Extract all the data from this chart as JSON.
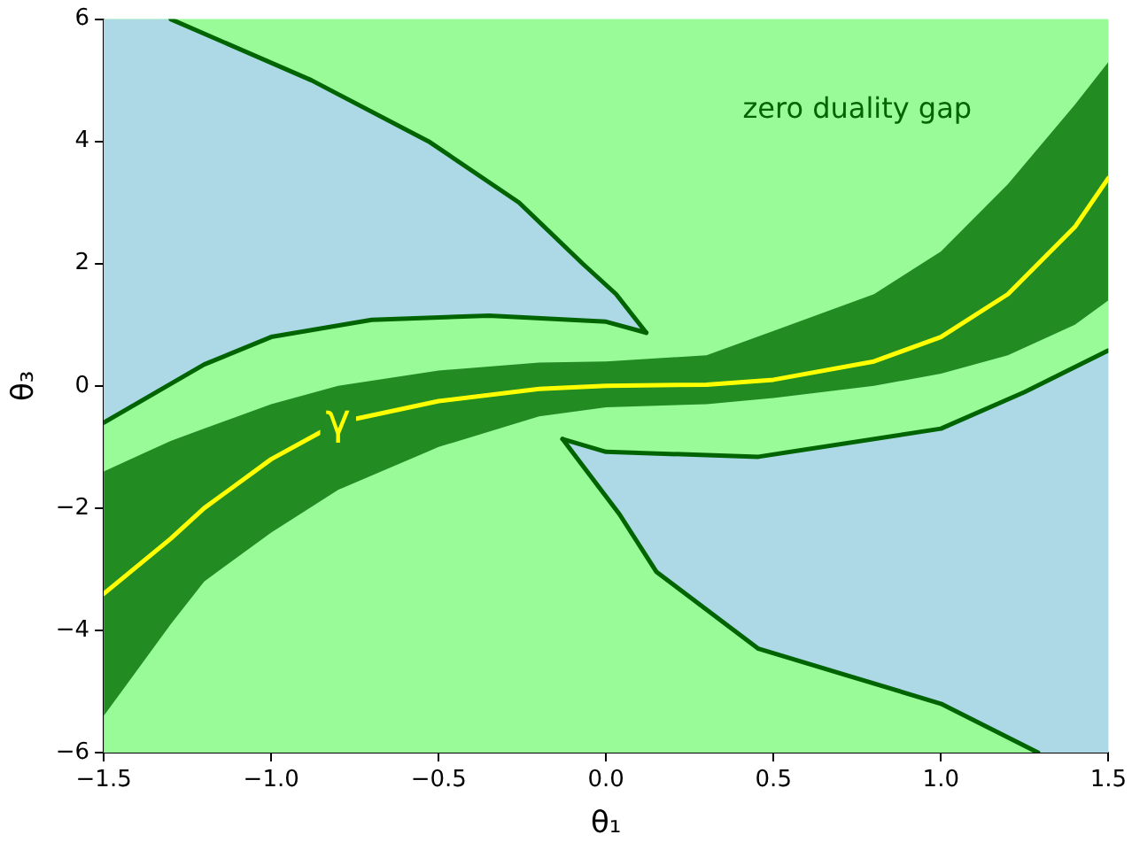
{
  "chart_data": {
    "type": "area",
    "xlabel": "θ₁",
    "ylabel": "θ₃",
    "xlim": [
      -1.5,
      1.5
    ],
    "xticks": [
      {
        "value": -1.5,
        "label": "−1.5"
      },
      {
        "value": -1,
        "label": "−1.0"
      },
      {
        "value": -0.5,
        "label": "−0.5"
      },
      {
        "value": 0,
        "label": "0.0"
      },
      {
        "value": 0.5,
        "label": "0.5"
      },
      {
        "value": 1,
        "label": "1.0"
      },
      {
        "value": 1.5,
        "label": "1.5"
      }
    ],
    "ylim": [
      -6,
      6
    ],
    "yticks": [
      {
        "value": -6,
        "label": "−6"
      },
      {
        "value": -4,
        "label": "−4"
      },
      {
        "value": -2,
        "label": "−2"
      },
      0,
      2,
      4,
      6
    ],
    "grid": false,
    "legend": false,
    "bands": [
      {
        "axis": "y",
        "from": -6,
        "to": 6,
        "color": "#98fb98"
      }
    ],
    "series": [
      {
        "color": "#add8e6",
        "x": [
          -1.5,
          -1.3,
          -0.88,
          -0.53,
          -0.26,
          -0.07,
          0.03,
          0.12,
          0,
          -0.35,
          -0.7,
          -1,
          -1.2,
          -1.5
        ],
        "values": [
          6,
          6,
          5,
          4,
          3,
          2,
          1.5,
          0.87,
          1.05,
          1.15,
          1.08,
          0.8,
          0.35,
          -0.6
        ]
      },
      {
        "color": "#add8e6",
        "x": [
          1.5,
          1.29,
          1,
          0.455,
          0.15,
          0.04,
          -0.13,
          0,
          0.455,
          1,
          1.25,
          1.5
        ],
        "values": [
          -6,
          -6,
          -5.2,
          -4.3,
          -3.04,
          -2.1,
          -0.87,
          -1.08,
          -1.16,
          -0.7,
          -0.1,
          0.58
        ]
      },
      {
        "type": "line",
        "color": "#006400",
        "x": [
          -1.3,
          -0.88,
          -0.53,
          -0.26,
          -0.07,
          0.03,
          0.12
        ],
        "values": [
          6,
          5,
          4,
          3,
          2,
          1.5,
          0.87
        ]
      },
      {
        "type": "line",
        "color": "#006400",
        "x": [
          -1.5,
          -1.2,
          -1,
          -0.7,
          -0.35,
          0,
          0.12
        ],
        "values": [
          -0.6,
          0.35,
          0.8,
          1.08,
          1.15,
          1.05,
          0.87
        ]
      },
      {
        "type": "line",
        "color": "#006400",
        "x": [
          -0.13,
          0.04,
          0.15,
          0.455,
          1,
          1.29
        ],
        "values": [
          -0.87,
          -2.1,
          -3.04,
          -4.3,
          -5.2,
          -6
        ]
      },
      {
        "type": "line",
        "color": "#006400",
        "x": [
          -0.13,
          0,
          0.455,
          1,
          1.25,
          1.5
        ],
        "values": [
          -0.87,
          -1.08,
          -1.16,
          -0.7,
          -0.1,
          0.58
        ]
      },
      {
        "type": "line",
        "name": "γ",
        "color": "#ffff00",
        "x": [
          -1.5,
          -1.3,
          -1.2,
          -1,
          -0.8,
          -0.5,
          -0.2,
          0,
          0.3,
          0.5,
          0.8,
          1,
          1.2,
          1.4,
          1.5
        ],
        "values": [
          -3.4,
          -2.5,
          -2,
          -1.2,
          -0.6,
          -0.25,
          -0.05,
          0,
          0.02,
          0.1,
          0.4,
          0.8,
          1.5,
          2.6,
          3.4
        ],
        "lower": [
          -5.4,
          -3.9,
          -3.2,
          -2.4,
          -1.7,
          -1,
          -0.5,
          -0.35,
          -0.3,
          -0.2,
          0,
          0.2,
          0.5,
          1,
          1.4
        ],
        "upper": [
          -1.4,
          -0.9,
          -0.7,
          -0.3,
          0,
          0.25,
          0.38,
          0.4,
          0.5,
          0.9,
          1.5,
          2.2,
          3.3,
          4.6,
          5.3
        ]
      }
    ],
    "annotations": [
      "zero duality gap"
    ]
  }
}
